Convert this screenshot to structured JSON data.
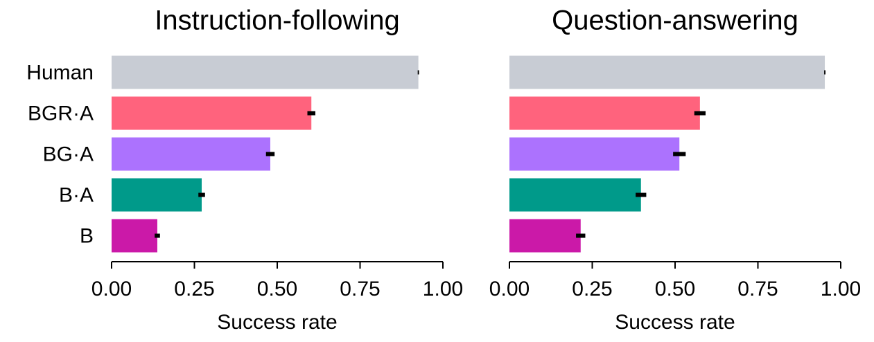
{
  "chart_data": [
    {
      "type": "bar",
      "orientation": "horizontal",
      "title": "Instruction-following",
      "xlabel": "Success rate",
      "categories": [
        "Human",
        "BGR·A",
        "BG·A",
        "B·A",
        "B"
      ],
      "values": [
        0.926,
        0.603,
        0.479,
        0.272,
        0.138
      ],
      "errors": [
        0.002,
        0.012,
        0.013,
        0.01,
        0.008
      ],
      "colors": [
        "#c8ccd4",
        "#ff637d",
        "#ac72fe",
        "#009a8a",
        "#cb19a8"
      ],
      "error_color": "#000000",
      "xlim": [
        0,
        1
      ],
      "xticks": [
        {
          "value": 0,
          "label": "0.00"
        },
        {
          "value": 0.25,
          "label": "0.25"
        },
        {
          "value": 0.5,
          "label": "0.50"
        },
        {
          "value": 0.75,
          "label": "0.75"
        },
        {
          "value": 1,
          "label": "1.00"
        }
      ]
    },
    {
      "type": "bar",
      "orientation": "horizontal",
      "title": "Question-answering",
      "xlabel": "Success rate",
      "values": [
        0.952,
        0.575,
        0.513,
        0.397,
        0.215
      ],
      "errors": [
        0.002,
        0.017,
        0.019,
        0.016,
        0.014
      ],
      "colors": [
        "#c8ccd4",
        "#ff637d",
        "#ac72fe",
        "#009a8a",
        "#cb19a8"
      ],
      "error_color": "#000000",
      "xlim": [
        0,
        1
      ],
      "xticks": [
        {
          "value": 0,
          "label": "0.00"
        },
        {
          "value": 0.25,
          "label": "0.25"
        },
        {
          "value": 0.5,
          "label": "0.50"
        },
        {
          "value": 0.75,
          "label": "0.75"
        },
        {
          "value": 1,
          "label": "1.00"
        }
      ]
    }
  ]
}
